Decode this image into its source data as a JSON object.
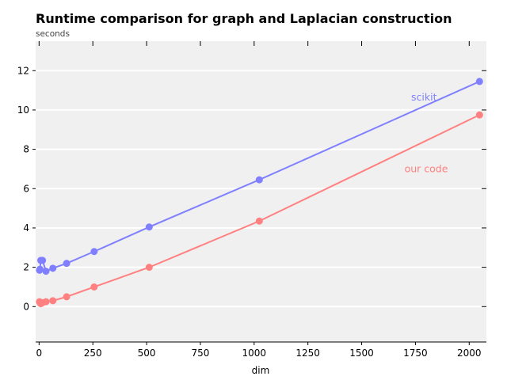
{
  "chart_data": {
    "type": "line",
    "title": "Runtime comparison for graph and Laplacian construction",
    "ylabel": "seconds",
    "xlabel": "dim",
    "xlim": [
      -16,
      2080
    ],
    "ylim": [
      -1.8,
      13.5
    ],
    "x_ticks": [
      0,
      250,
      500,
      750,
      1000,
      1250,
      1500,
      1750,
      2000
    ],
    "y_ticks": [
      0,
      2,
      4,
      6,
      8,
      10,
      12
    ],
    "grid": "horizontal",
    "background": "#f0f0f0",
    "series": [
      {
        "name": "scikit",
        "color": "#8080ff",
        "x": [
          2,
          4,
          8,
          16,
          32,
          64,
          128,
          256,
          512,
          1024,
          2048
        ],
        "y": [
          1.85,
          1.9,
          2.35,
          2.35,
          1.8,
          1.95,
          2.2,
          2.8,
          4.05,
          6.45,
          11.45
        ]
      },
      {
        "name": "our code",
        "color": "#ff8080",
        "x": [
          2,
          4,
          8,
          16,
          32,
          64,
          128,
          256,
          512,
          1024,
          2048
        ],
        "y": [
          0.25,
          0.2,
          0.15,
          0.2,
          0.25,
          0.3,
          0.5,
          1.0,
          2.0,
          4.35,
          9.75
        ]
      }
    ]
  }
}
